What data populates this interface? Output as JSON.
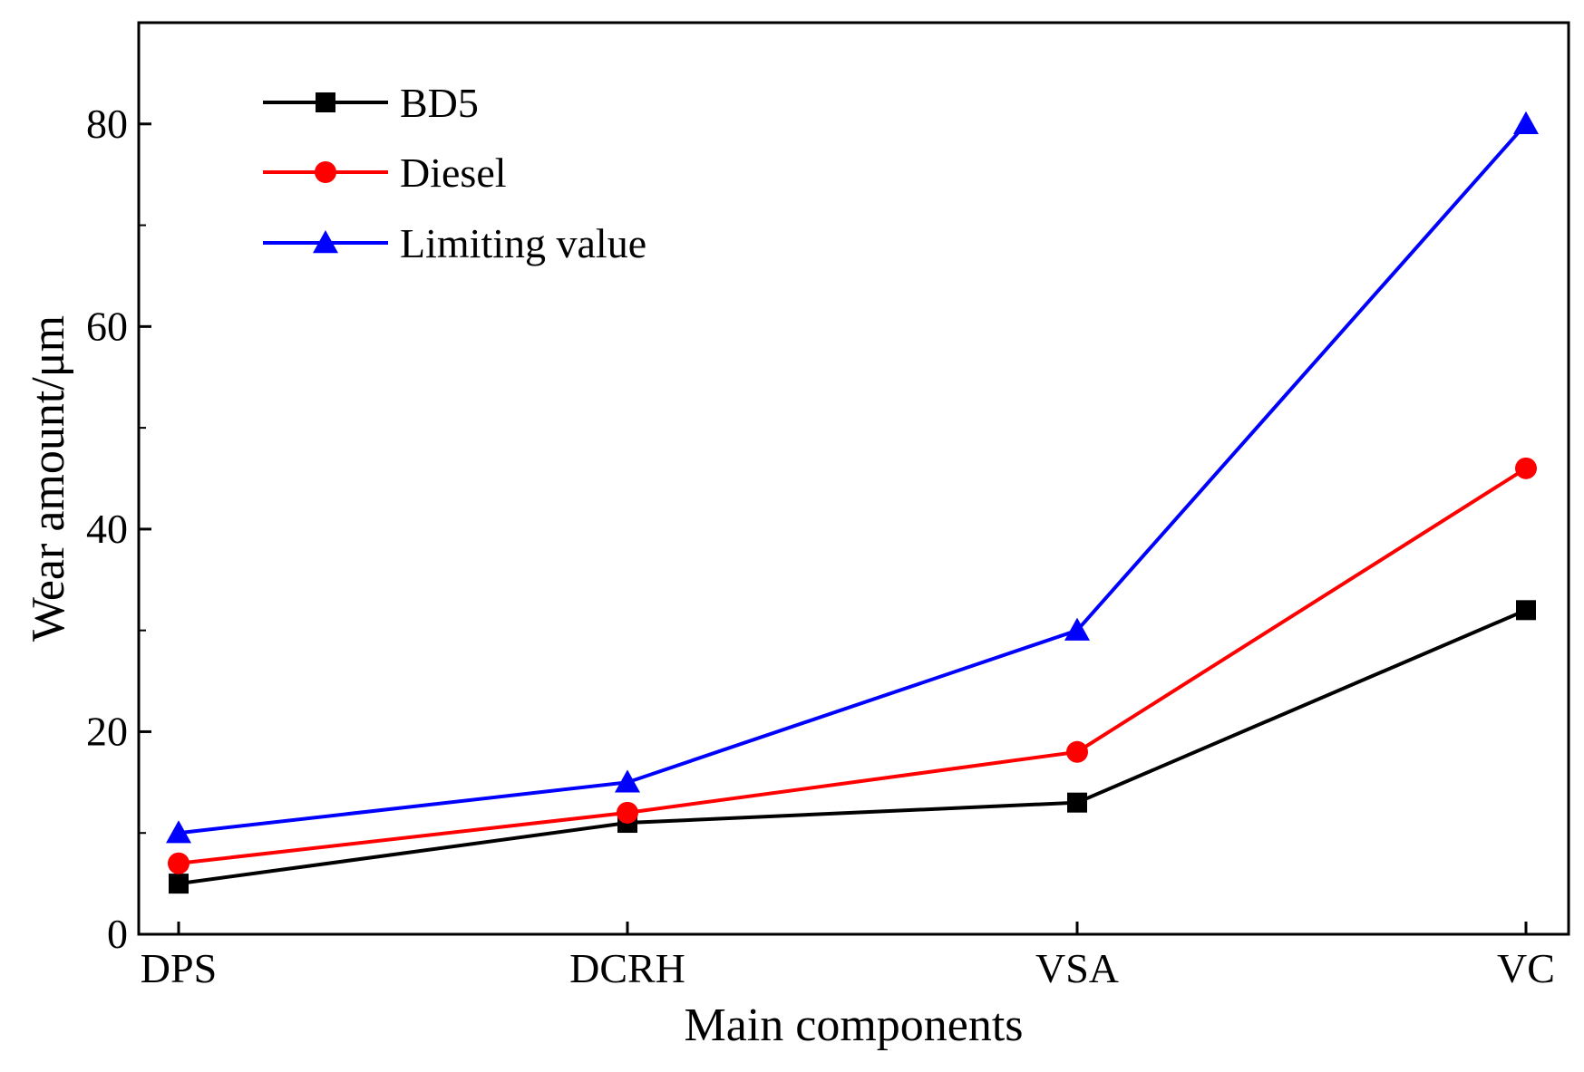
{
  "chart_data": {
    "type": "line",
    "title": "",
    "xlabel": "Main components",
    "ylabel": "Wear amount/μm",
    "categories": [
      "DPS",
      "DCRH",
      "VSA",
      "VC"
    ],
    "ylim": [
      0,
      90
    ],
    "yticks": [
      0,
      20,
      40,
      60,
      80
    ],
    "grid": false,
    "legend_position": "top-left",
    "series": [
      {
        "name": "BD5",
        "values": [
          5,
          11,
          13,
          32
        ],
        "color": "#000000",
        "marker": "square"
      },
      {
        "name": "Diesel",
        "values": [
          7,
          12,
          18,
          46
        ],
        "color": "#ff0000",
        "marker": "circle"
      },
      {
        "name": "Limiting value",
        "values": [
          10,
          15,
          30,
          80
        ],
        "color": "#0000ff",
        "marker": "triangle"
      }
    ]
  }
}
